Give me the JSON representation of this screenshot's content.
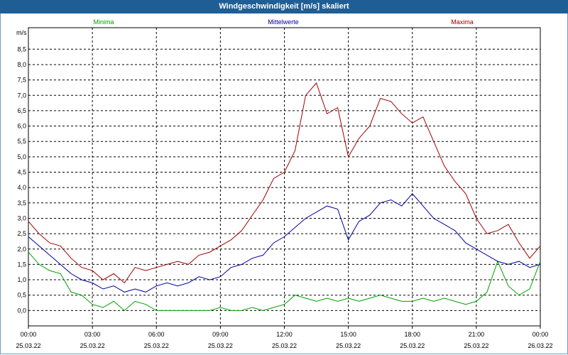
{
  "window": {
    "title": "Windgeschwindigkeit [m/s] skaliert"
  },
  "colors": {
    "title_bar": "#1f5e95",
    "min": "#00a000",
    "mean": "#0000a0",
    "max": "#a00000",
    "grid": "#000000"
  },
  "chart_data": {
    "type": "line",
    "ylabel": "m/s",
    "ylim": [
      -0.5,
      9.2
    ],
    "yticks": [
      "0,0",
      "0,5",
      "1,0",
      "1,5",
      "2,0",
      "2,5",
      "3,0",
      "3,5",
      "4,0",
      "4,5",
      "5,0",
      "5,5",
      "6,0",
      "6,5",
      "7,0",
      "7,5",
      "8,0",
      "8,5"
    ],
    "xticks": [
      {
        "time": "00:00",
        "date": "25.03.22"
      },
      {
        "time": "03:00",
        "date": "25.03.22"
      },
      {
        "time": "06:00",
        "date": "25.03.22"
      },
      {
        "time": "09:00",
        "date": "25.03.22"
      },
      {
        "time": "12:00",
        "date": "25.03.22"
      },
      {
        "time": "15:00",
        "date": "25.03.22"
      },
      {
        "time": "18:00",
        "date": "25.03.22"
      },
      {
        "time": "21:00",
        "date": "25.03.22"
      },
      {
        "time": "00:00",
        "date": "26.03.22"
      }
    ],
    "x_range_hours": [
      0,
      24
    ],
    "grid": true,
    "series": [
      {
        "name": "Minima",
        "color": "#00a000",
        "x": [
          0,
          0.5,
          1,
          1.5,
          2,
          2.5,
          3,
          3.5,
          4,
          4.5,
          5,
          5.5,
          6,
          6.5,
          7,
          7.5,
          8,
          8.5,
          9,
          9.5,
          10,
          10.5,
          11,
          11.5,
          12,
          12.5,
          13,
          13.5,
          14,
          14.5,
          15,
          15.5,
          16,
          16.5,
          17,
          17.5,
          18,
          18.5,
          19,
          19.5,
          20,
          20.5,
          21,
          21.5,
          22,
          22.5,
          23,
          23.5,
          24
        ],
        "values": [
          1.9,
          1.5,
          1.3,
          1.2,
          0.6,
          0.5,
          0.2,
          0.1,
          0.3,
          0.0,
          0.3,
          0.2,
          0.0,
          0.0,
          0.0,
          0.0,
          0.0,
          0.0,
          0.1,
          0.0,
          0.0,
          0.1,
          0.0,
          0.1,
          0.2,
          0.5,
          0.4,
          0.3,
          0.4,
          0.3,
          0.4,
          0.3,
          0.4,
          0.5,
          0.4,
          0.3,
          0.3,
          0.4,
          0.3,
          0.4,
          0.3,
          0.2,
          0.3,
          0.6,
          1.6,
          0.8,
          0.5,
          0.7,
          1.6
        ]
      },
      {
        "name": "Mittelwerte",
        "color": "#0000a0",
        "x": [
          0,
          0.5,
          1,
          1.5,
          2,
          2.5,
          3,
          3.5,
          4,
          4.5,
          5,
          5.5,
          6,
          6.5,
          7,
          7.5,
          8,
          8.5,
          9,
          9.5,
          10,
          10.5,
          11,
          11.5,
          12,
          12.5,
          13,
          13.5,
          14,
          14.5,
          15,
          15.5,
          16,
          16.5,
          17,
          17.5,
          18,
          18.5,
          19,
          19.5,
          20,
          20.5,
          21,
          21.5,
          22,
          22.5,
          23,
          23.5,
          24
        ],
        "values": [
          2.4,
          2.1,
          1.8,
          1.5,
          1.2,
          1.0,
          0.9,
          0.7,
          0.8,
          0.6,
          0.7,
          0.6,
          0.8,
          0.9,
          0.8,
          0.9,
          1.1,
          1.0,
          1.1,
          1.4,
          1.5,
          1.7,
          1.8,
          2.2,
          2.4,
          2.7,
          3.0,
          3.2,
          3.4,
          3.3,
          2.3,
          2.9,
          3.1,
          3.5,
          3.6,
          3.4,
          3.8,
          3.4,
          3.0,
          2.8,
          2.6,
          2.2,
          2.0,
          1.8,
          1.6,
          1.5,
          1.6,
          1.4,
          1.5
        ]
      },
      {
        "name": "Maxima",
        "color": "#a00000",
        "x": [
          0,
          0.5,
          1,
          1.5,
          2,
          2.5,
          3,
          3.5,
          4,
          4.5,
          5,
          5.5,
          6,
          6.5,
          7,
          7.5,
          8,
          8.5,
          9,
          9.5,
          10,
          10.5,
          11,
          11.5,
          12,
          12.5,
          13,
          13.5,
          14,
          14.5,
          15,
          15.5,
          16,
          16.5,
          17,
          17.5,
          18,
          18.5,
          19,
          19.5,
          20,
          20.5,
          21,
          21.5,
          22,
          22.5,
          23,
          23.5,
          24
        ],
        "values": [
          2.9,
          2.5,
          2.2,
          2.1,
          1.7,
          1.4,
          1.3,
          1.0,
          1.2,
          0.9,
          1.4,
          1.3,
          1.4,
          1.5,
          1.6,
          1.5,
          1.8,
          1.9,
          2.1,
          2.3,
          2.6,
          3.1,
          3.6,
          4.3,
          4.5,
          5.2,
          7.0,
          7.4,
          6.4,
          6.6,
          5.0,
          5.6,
          6.0,
          6.9,
          6.8,
          6.4,
          6.1,
          6.3,
          5.5,
          4.7,
          4.2,
          3.8,
          3.0,
          2.5,
          2.6,
          2.8,
          2.2,
          1.7,
          2.1
        ]
      }
    ]
  }
}
